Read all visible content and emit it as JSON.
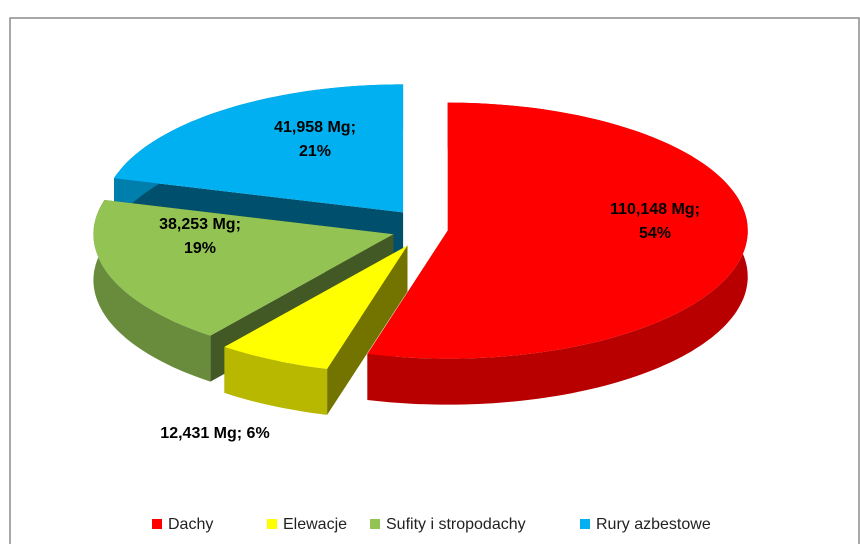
{
  "chart_data": {
    "type": "pie3d",
    "categories": [
      "Dachy",
      "Elewacje",
      "Sufity i stropodachy",
      "Rury azbestowe"
    ],
    "values": [
      110.148,
      12.431,
      38.253,
      41.958
    ],
    "value_labels": [
      "110,148 Mg; 54%",
      "12,431 Mg; 6%",
      "38,253 Mg; 19%",
      "41,958 Mg; 21%"
    ],
    "colors": [
      "#ff0000",
      "#ffff00",
      "#92c353",
      "#00b0f0"
    ],
    "legend": "bottom"
  }
}
